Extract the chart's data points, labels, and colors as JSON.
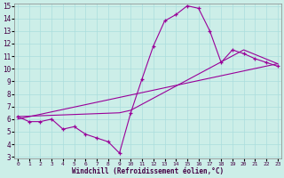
{
  "xlabel": "Windchill (Refroidissement éolien,°C)",
  "xlim": [
    0,
    23
  ],
  "ylim": [
    3,
    15
  ],
  "xticks": [
    0,
    1,
    2,
    3,
    4,
    5,
    6,
    7,
    8,
    9,
    10,
    11,
    12,
    13,
    14,
    15,
    16,
    17,
    18,
    19,
    20,
    21,
    22,
    23
  ],
  "yticks": [
    3,
    4,
    5,
    6,
    7,
    8,
    9,
    10,
    11,
    12,
    13,
    14,
    15
  ],
  "bg_color": "#cceee8",
  "line_color": "#990099",
  "line1_x": [
    0,
    1,
    2,
    3,
    4,
    5,
    6,
    7,
    8,
    9,
    10,
    11,
    12,
    13,
    14,
    15,
    16,
    17,
    18,
    19,
    20,
    21,
    22,
    23
  ],
  "line1_y": [
    6.2,
    5.8,
    5.8,
    6.0,
    5.2,
    5.4,
    4.8,
    4.5,
    4.2,
    3.3,
    6.5,
    9.2,
    11.8,
    13.8,
    14.3,
    15.0,
    14.8,
    13.0,
    10.5,
    11.5,
    11.2,
    10.8,
    10.5,
    10.2
  ],
  "line2_x": [
    0,
    9,
    10,
    20,
    23
  ],
  "line2_y": [
    6.2,
    6.5,
    6.7,
    11.5,
    10.4
  ],
  "line3_x": [
    0,
    23
  ],
  "line3_y": [
    6.0,
    10.4
  ]
}
